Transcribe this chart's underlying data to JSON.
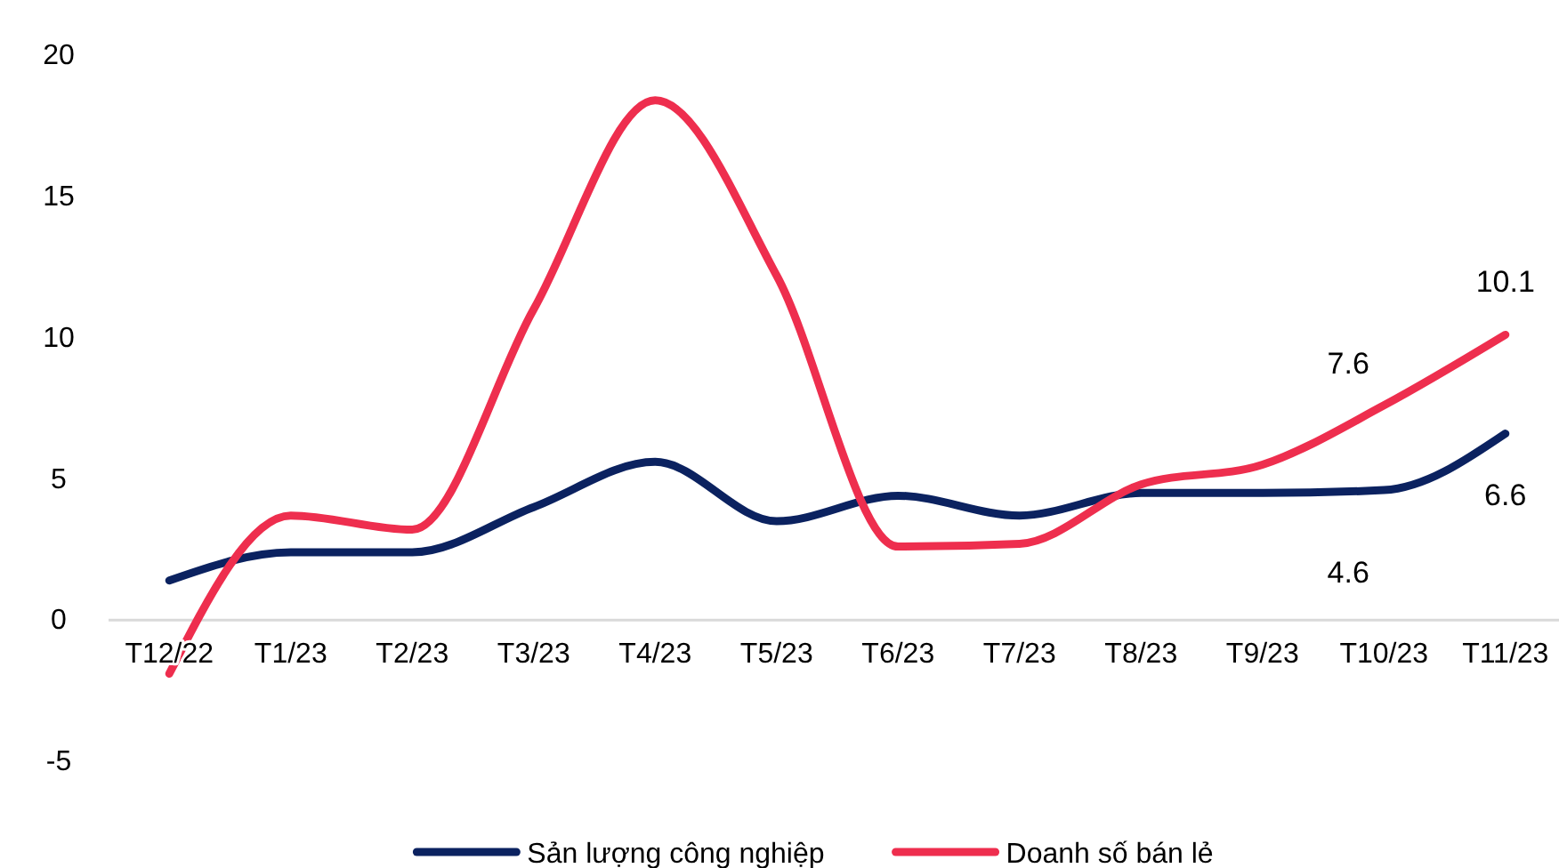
{
  "chart_data": {
    "type": "line",
    "categories": [
      "T12/22",
      "T1/23",
      "T2/23",
      "T3/23",
      "T4/23",
      "T5/23",
      "T6/23",
      "T7/23",
      "T8/23",
      "T9/23",
      "T10/23",
      "T11/23"
    ],
    "series": [
      {
        "name": "Sản lượng công nghiệp",
        "color": "#0b2260",
        "values": [
          1.4,
          2.4,
          2.4,
          4.0,
          5.6,
          3.5,
          4.4,
          3.7,
          4.5,
          4.5,
          4.6,
          6.6
        ],
        "value_labels": [
          null,
          null,
          null,
          null,
          null,
          null,
          null,
          null,
          null,
          null,
          "4.6",
          "6.6"
        ]
      },
      {
        "name": "Doanh số bán lẻ",
        "color": "#ee2e4e",
        "values": [
          -1.9,
          3.7,
          3.2,
          11.0,
          18.4,
          12.2,
          2.6,
          2.7,
          4.8,
          5.5,
          7.6,
          10.1
        ],
        "value_labels": [
          null,
          null,
          null,
          null,
          null,
          null,
          null,
          null,
          null,
          null,
          "7.6",
          "10.1"
        ]
      }
    ],
    "ylim": [
      -5,
      20
    ],
    "yticks": [
      -5,
      0,
      5,
      10,
      15,
      20
    ],
    "grid": false,
    "legend": "bottom",
    "marker": "none",
    "line_style": "solid"
  }
}
